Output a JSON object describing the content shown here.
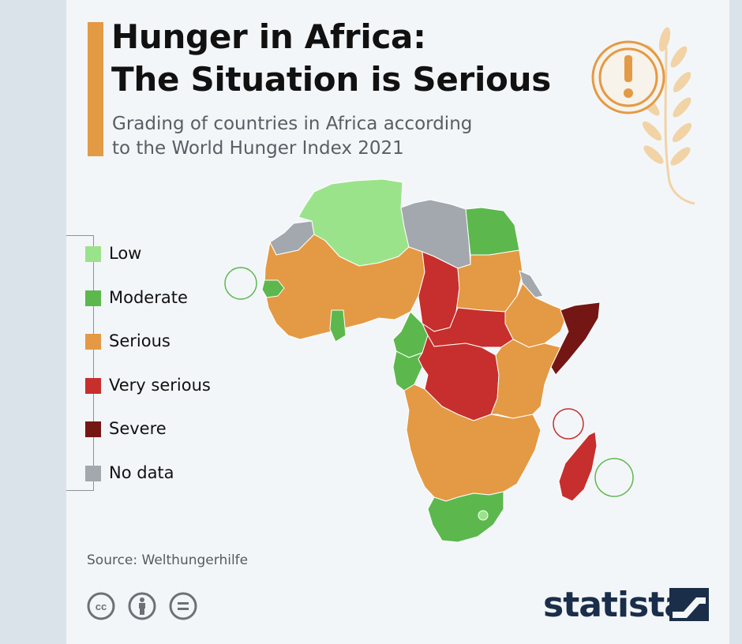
{
  "title_line1": "Hunger in Africa:",
  "title_line2": "The Situation is Serious",
  "subtitle_line1": "Grading of countries in Africa according",
  "subtitle_line2": "to the World Hunger Index 2021",
  "legend": [
    {
      "label": "Low",
      "color": "#9be38a"
    },
    {
      "label": "Moderate",
      "color": "#5cb84d"
    },
    {
      "label": "Serious",
      "color": "#e49944"
    },
    {
      "label": "Very serious",
      "color": "#c62f2d"
    },
    {
      "label": "Severe",
      "color": "#741714"
    },
    {
      "label": "No data",
      "color": "#a2a8ae"
    }
  ],
  "map_colors": {
    "low": "#9be38a",
    "moderate": "#5cb84d",
    "serious": "#e49944",
    "very_serious": "#c62f2d",
    "severe": "#741714",
    "no_data": "#a2a8ae",
    "accent": "#e39a45"
  },
  "source": "Source: Welthungerhilfe",
  "brand": "statista",
  "icons": [
    "wheat-warning-icon",
    "cc-icon",
    "by-icon",
    "nd-icon",
    "statista-logo-icon"
  ]
}
